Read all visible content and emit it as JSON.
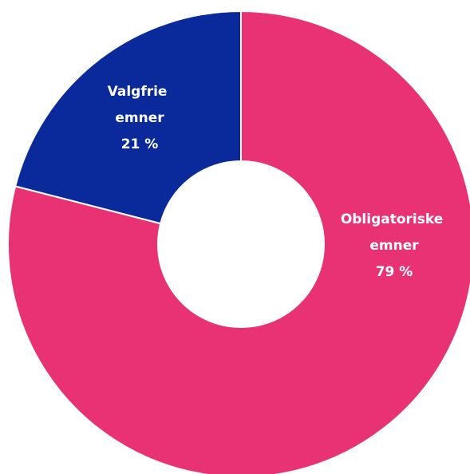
{
  "chart_data": {
    "type": "donut",
    "categories": [
      "Obligatoriske emner",
      "Valgfrie emner"
    ],
    "values": [
      79,
      21
    ],
    "value_labels": [
      "79 %",
      "21 %"
    ],
    "colors": [
      "#e83273",
      "#0a2a9c"
    ]
  }
}
